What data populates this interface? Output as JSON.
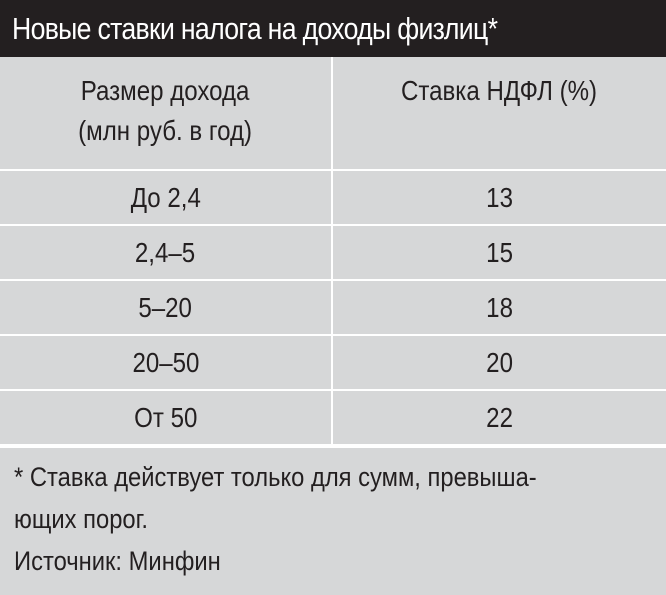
{
  "title": "Новые ставки налога на доходы физлиц*",
  "chart_data": {
    "type": "table",
    "columns": [
      "Размер дохода (млн руб. в год)",
      "Ставка НДФЛ (%)"
    ],
    "column_lines": [
      [
        "Размер дохода",
        "(млн руб. в год)"
      ],
      [
        "Ставка НДФЛ (%)"
      ]
    ],
    "rows": [
      [
        "До 2,4",
        "13"
      ],
      [
        "2,4–5",
        "15"
      ],
      [
        "5–20",
        "18"
      ],
      [
        "20–50",
        "20"
      ],
      [
        "От 50",
        "22"
      ]
    ]
  },
  "footnote_lines": [
    "* Ставка действует только для сумм, превыша-",
    "ющих порог."
  ],
  "source": "Источник: Минфин",
  "colors": {
    "title_bg": "#231f20",
    "table_bg": "#d6d7d8",
    "grid": "#ffffff"
  }
}
